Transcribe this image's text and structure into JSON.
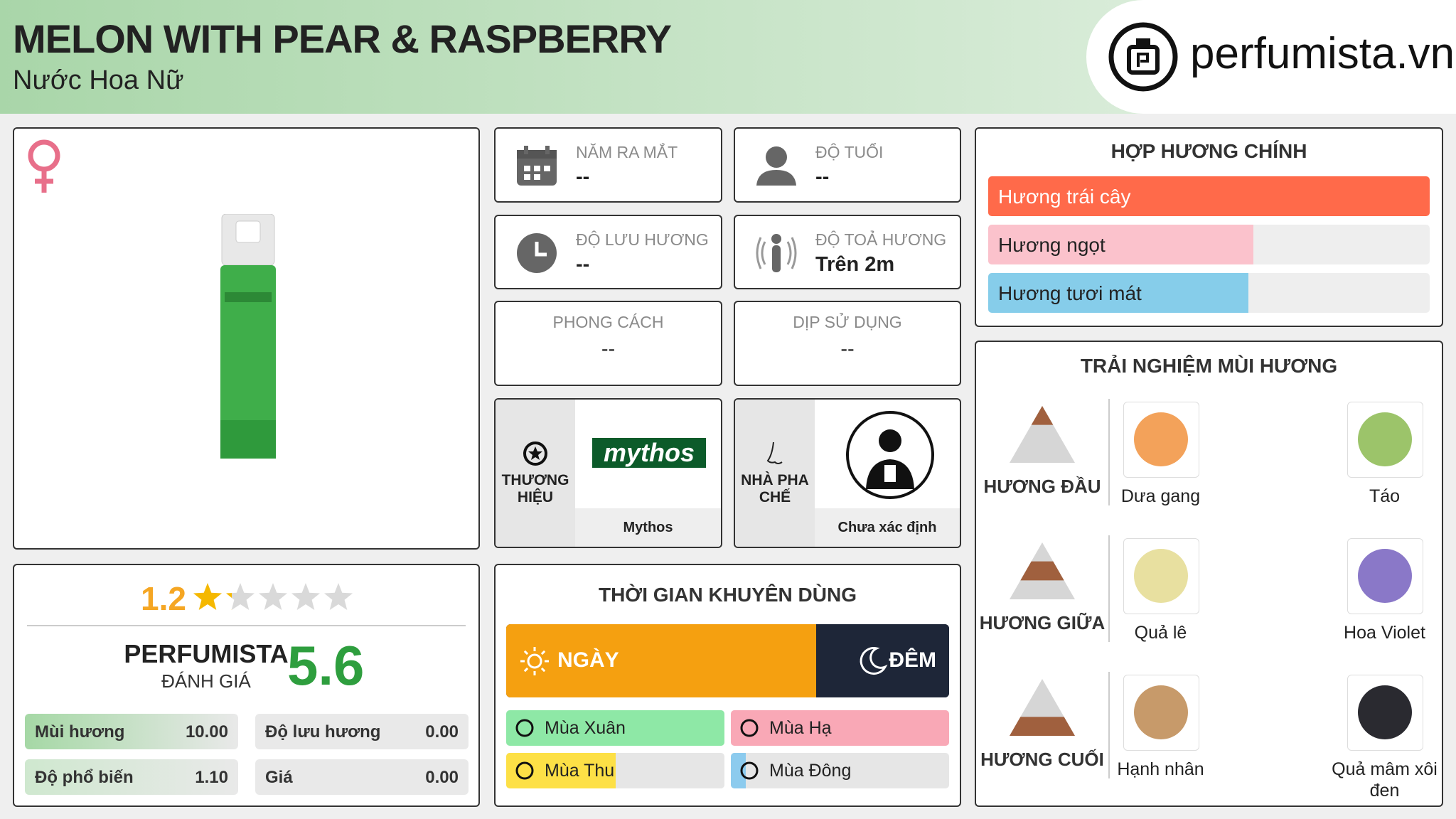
{
  "header": {
    "title": "MELON WITH PEAR & RASPBERRY",
    "subtitle": "Nước Hoa Nữ",
    "logo": "perfumista.vn"
  },
  "info": [
    {
      "label": "NĂM RA MẮT",
      "value": "--"
    },
    {
      "label": "ĐỘ TUỔI",
      "value": "--"
    },
    {
      "label": "ĐỘ LƯU HƯƠNG",
      "value": "--"
    },
    {
      "label": "ĐỘ TOẢ HƯƠNG",
      "value": "Trên 2m"
    },
    {
      "label": "PHONG CÁCH",
      "value": "--"
    },
    {
      "label": "DỊP SỬ DỤNG",
      "value": "--"
    }
  ],
  "brand": {
    "label": "THƯƠNG HIỆU",
    "logo": "mythos",
    "name": "Mythos"
  },
  "perfumer": {
    "label": "NHÀ PHA CHẾ",
    "name": "Chưa xác định"
  },
  "rating": {
    "stars": 1.2,
    "score_label": "PERFUMISTA",
    "score_sublabel": "ĐÁNH GIÁ",
    "score": 5.6,
    "metrics": [
      {
        "name": "Mùi hương",
        "value": "10.00"
      },
      {
        "name": "Độ lưu hương",
        "value": "0.00"
      },
      {
        "name": "Độ phổ biến",
        "value": "1.10"
      },
      {
        "name": "Giá",
        "value": "0.00"
      }
    ]
  },
  "time": {
    "title": "THỜI GIAN KHUYÊN DÙNG",
    "day": {
      "label": "NGÀY",
      "value": 70
    },
    "night": {
      "label": "ĐÊM",
      "value": 30
    },
    "seasons": [
      {
        "name": "Mùa Xuân",
        "color": "#8ee8a6",
        "value": 100
      },
      {
        "name": "Mùa Hạ",
        "color": "#f9a8b6",
        "value": 100
      },
      {
        "name": "Mùa Thu",
        "color": "#fde046",
        "value": 50
      },
      {
        "name": "Mùa Đông",
        "color": "#8ccbee",
        "value": 7
      }
    ]
  },
  "accords": {
    "title": "HỢP HƯƠNG CHÍNH",
    "items": [
      {
        "name": "Hương trái cây",
        "color": "#ff6a4a",
        "value": 100
      },
      {
        "name": "Hương ngọt",
        "color": "#fbc2cc",
        "value": 60
      },
      {
        "name": "Hương tươi mát",
        "color": "#86cdea",
        "value": 59
      }
    ]
  },
  "notes": {
    "title": "TRẢI NGHIỆM MÙI HƯƠNG",
    "tiers": [
      {
        "label": "HƯƠNG ĐẦU",
        "notes": [
          "Dưa gang",
          "Táo"
        ]
      },
      {
        "label": "HƯƠNG GIỮA",
        "notes": [
          "Quả lê",
          "Hoa Violet"
        ]
      },
      {
        "label": "HƯƠNG CUỐI",
        "notes": [
          "Hạnh nhân",
          "Quả mâm xôi đen"
        ]
      }
    ]
  }
}
